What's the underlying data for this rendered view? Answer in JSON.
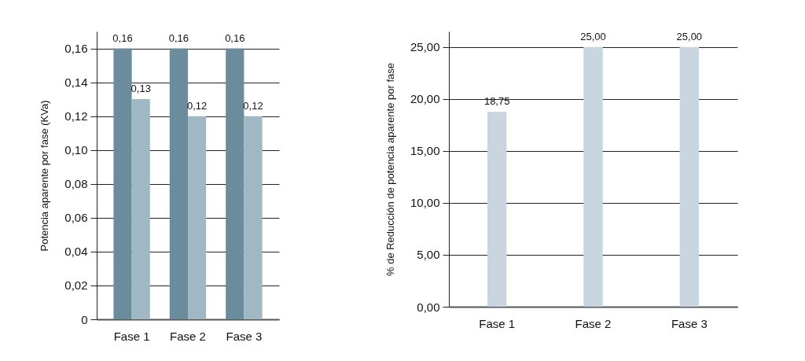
{
  "chart_data": [
    {
      "type": "bar",
      "ylabel": "Potencia aparente por fase (KVa)",
      "categories": [
        "Fase 1",
        "Fase 2",
        "Fase 3"
      ],
      "series": [
        {
          "color": "#6b8c9c",
          "values": [
            0.16,
            0.16,
            0.16
          ],
          "value_labels": [
            "0,16",
            "0,16",
            "0,16"
          ]
        },
        {
          "color": "#9fb8c4",
          "values": [
            0.13,
            0.12,
            0.12
          ],
          "value_labels": [
            "0,13",
            "0,12",
            "0,12"
          ]
        }
      ],
      "ylim": [
        0,
        0.17
      ],
      "yticks": [
        0,
        {
          "value": 0.02,
          "label": "0,02"
        },
        {
          "value": 0.04,
          "label": "0,04"
        },
        {
          "value": 0.06,
          "label": "0,06"
        },
        {
          "value": 0.08,
          "label": "0,08"
        },
        {
          "value": 0.1,
          "label": "0,10"
        },
        {
          "value": 0.12,
          "label": "0,12"
        },
        {
          "value": 0.14,
          "label": "0,14"
        },
        {
          "value": 0.16,
          "label": "0,16"
        }
      ],
      "grid": "y"
    },
    {
      "type": "bar",
      "ylabel": "% de Reducción de potencia aparente por fase",
      "categories": [
        "Fase 1",
        "Fase 2",
        "Fase 3"
      ],
      "series": [
        {
          "color": "#c9d6e0",
          "values": [
            18.75,
            25,
            25
          ],
          "value_labels": [
            "18,75",
            "25,00",
            "25,00"
          ]
        }
      ],
      "ylim": [
        0,
        26.5
      ],
      "yticks": [
        {
          "value": 0,
          "label": "0,00"
        },
        {
          "value": 5,
          "label": "5,00"
        },
        {
          "value": 10,
          "label": "10,00"
        },
        {
          "value": 15,
          "label": "15,00"
        },
        {
          "value": 20,
          "label": "20,00"
        },
        {
          "value": 25,
          "label": "25,00"
        }
      ],
      "grid": "y"
    }
  ]
}
